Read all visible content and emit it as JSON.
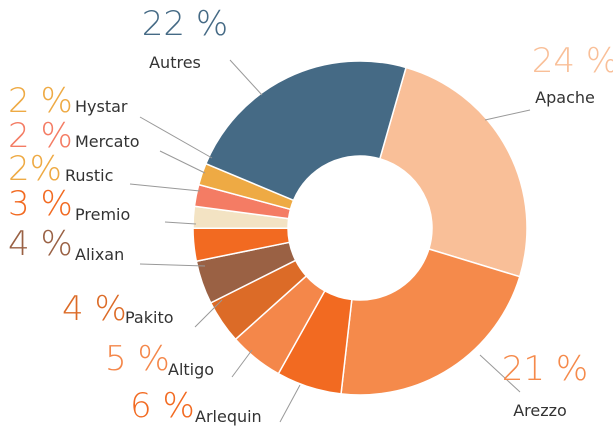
{
  "chart_data": {
    "type": "pie",
    "donut": true,
    "categories": [
      "Apache",
      "Arezzo",
      "Arlequin",
      "Altigo",
      "Pakito",
      "Alixan",
      "Premio",
      "Rustic",
      "Mercato",
      "Hystar",
      "Autres"
    ],
    "values": [
      24,
      21,
      6,
      5,
      4,
      4,
      3,
      2,
      2,
      2,
      22
    ],
    "value_labels": [
      "24 %",
      "21 %",
      "6 %",
      "5 %",
      "4 %",
      "4 %",
      "3 %",
      "2%",
      "2 %",
      "2 %",
      "22 %"
    ],
    "colors": [
      "#f9bf98",
      "#f58a4b",
      "#f26a21",
      "#f4874a",
      "#dc6b27",
      "#9a6144",
      "#f26a21",
      "#f3e3c3",
      "#f47c64",
      "#eeaa44",
      "#456a85"
    ]
  }
}
